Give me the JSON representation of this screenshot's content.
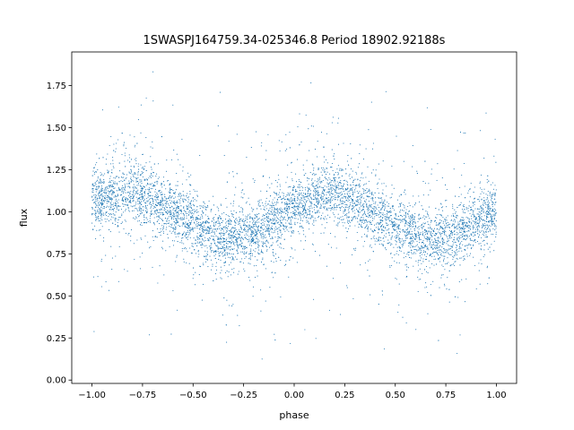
{
  "chart_data": {
    "type": "scatter",
    "title": "1SWASPJ164759.34-025346.8 Period 18902.92188s",
    "xlabel": "phase",
    "ylabel": "flux",
    "xlim": [
      -1.1,
      1.1
    ],
    "ylim": [
      -0.02,
      1.95
    ],
    "x_ticks": [
      -1.0,
      -0.75,
      -0.5,
      -0.25,
      0.0,
      0.25,
      0.5,
      0.75,
      1.0
    ],
    "x_tick_labels": [
      "−1.00",
      "−0.75",
      "−0.50",
      "−0.25",
      "0.00",
      "0.25",
      "0.50",
      "0.75",
      "1.00"
    ],
    "y_ticks": [
      0.0,
      0.25,
      0.5,
      0.75,
      1.0,
      1.25,
      1.5,
      1.75
    ],
    "y_tick_labels": [
      "0.00",
      "0.25",
      "0.50",
      "0.75",
      "1.00",
      "1.25",
      "1.50",
      "1.75"
    ],
    "grid": false,
    "marker_color": "#1f77b4",
    "series": [
      {
        "x": [
          -1.0,
          -0.9,
          -0.8,
          -0.7,
          -0.6,
          -0.5,
          -0.4,
          -0.3,
          -0.2,
          -0.1,
          0.0,
          0.1,
          0.2,
          0.3,
          0.4,
          0.5,
          0.6,
          0.7,
          0.8,
          0.9,
          1.0
        ],
        "y": [
          1.06,
          1.1,
          1.12,
          1.07,
          1.0,
          0.93,
          0.86,
          0.84,
          0.87,
          0.95,
          1.02,
          1.08,
          1.11,
          1.06,
          0.98,
          0.91,
          0.84,
          0.83,
          0.87,
          0.95,
          1.02
        ]
      }
    ]
  }
}
